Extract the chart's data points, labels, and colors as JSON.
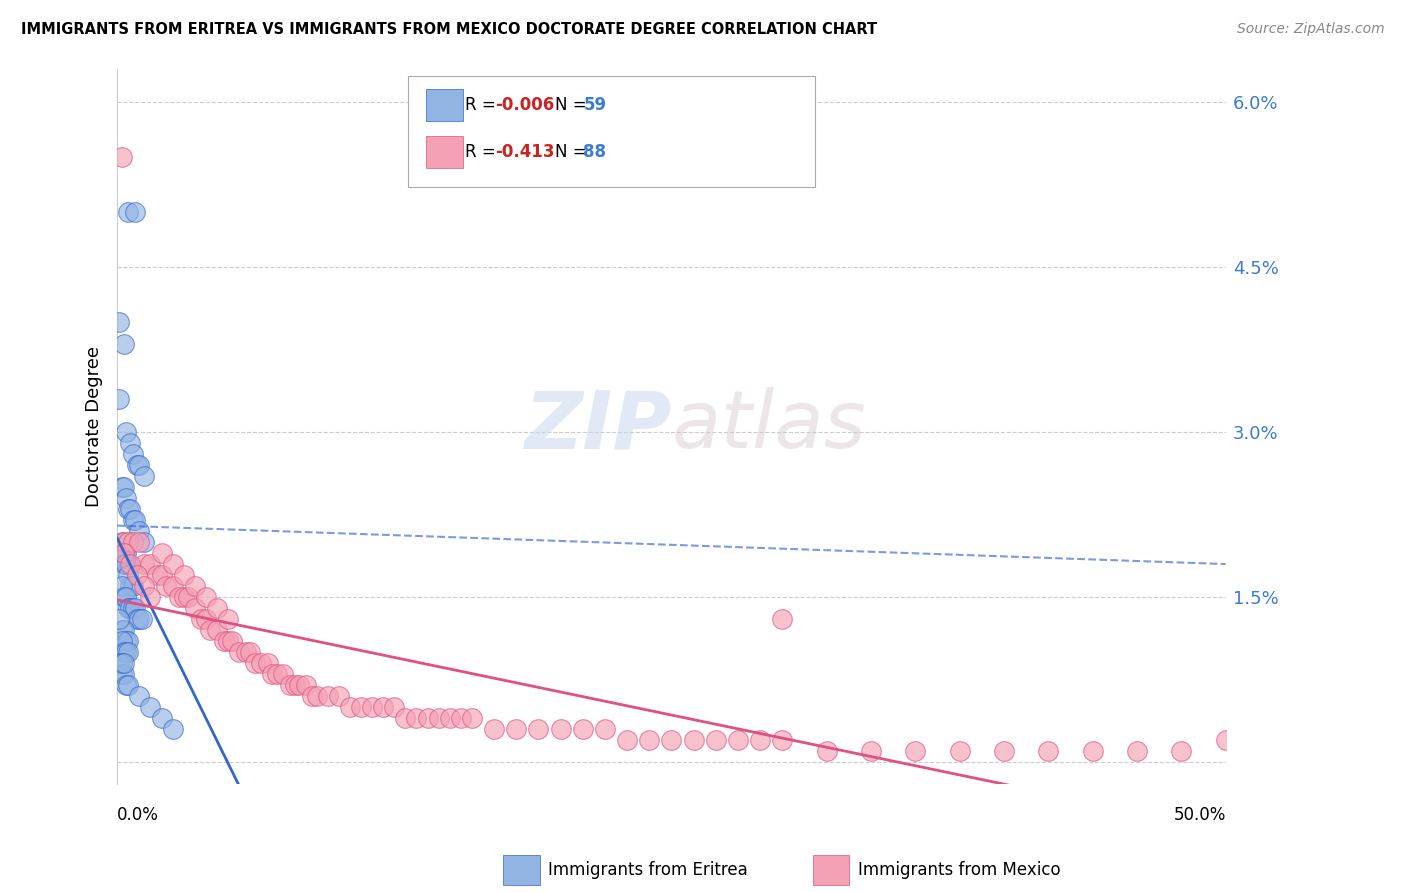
{
  "title": "IMMIGRANTS FROM ERITREA VS IMMIGRANTS FROM MEXICO DOCTORATE DEGREE CORRELATION CHART",
  "source": "Source: ZipAtlas.com",
  "ylabel": "Doctorate Degree",
  "xmin": 0.0,
  "xmax": 0.5,
  "ymin": -0.002,
  "ymax": 0.063,
  "legend_eritrea_R": "-0.006",
  "legend_eritrea_N": "59",
  "legend_mexico_R": "-0.413",
  "legend_mexico_N": "88",
  "eritrea_color": "#92b4e3",
  "mexico_color": "#f4a0b5",
  "eritrea_line_color": "#3366cc",
  "mexico_line_color": "#e05080",
  "background_color": "#ffffff",
  "watermark_zip": "ZIP",
  "watermark_atlas": "atlas",
  "eritrea_scatter_x": [
    0.005,
    0.008,
    0.003,
    0.004,
    0.006,
    0.007,
    0.009,
    0.01,
    0.012,
    0.002,
    0.003,
    0.004,
    0.005,
    0.006,
    0.007,
    0.008,
    0.01,
    0.012,
    0.001,
    0.002,
    0.003,
    0.004,
    0.005,
    0.003,
    0.004,
    0.005,
    0.006,
    0.007,
    0.002,
    0.003,
    0.004,
    0.005,
    0.006,
    0.007,
    0.008,
    0.009,
    0.01,
    0.011,
    0.001,
    0.002,
    0.003,
    0.004,
    0.005,
    0.002,
    0.003,
    0.004,
    0.005,
    0.001,
    0.002,
    0.003,
    0.004,
    0.005,
    0.01,
    0.015,
    0.02,
    0.025,
    0.001,
    0.002,
    0.003
  ],
  "eritrea_scatter_y": [
    0.05,
    0.05,
    0.038,
    0.03,
    0.029,
    0.028,
    0.027,
    0.027,
    0.026,
    0.025,
    0.025,
    0.024,
    0.023,
    0.023,
    0.022,
    0.022,
    0.021,
    0.02,
    0.04,
    0.02,
    0.019,
    0.019,
    0.018,
    0.018,
    0.018,
    0.017,
    0.016,
    0.016,
    0.016,
    0.015,
    0.015,
    0.014,
    0.014,
    0.014,
    0.014,
    0.013,
    0.013,
    0.013,
    0.033,
    0.012,
    0.012,
    0.011,
    0.011,
    0.011,
    0.01,
    0.01,
    0.01,
    0.009,
    0.008,
    0.008,
    0.007,
    0.007,
    0.006,
    0.005,
    0.004,
    0.003,
    0.013,
    0.009,
    0.009
  ],
  "mexico_scatter_x": [
    0.002,
    0.003,
    0.005,
    0.007,
    0.01,
    0.012,
    0.015,
    0.018,
    0.02,
    0.022,
    0.025,
    0.028,
    0.03,
    0.032,
    0.035,
    0.038,
    0.04,
    0.042,
    0.045,
    0.048,
    0.05,
    0.052,
    0.055,
    0.058,
    0.06,
    0.062,
    0.065,
    0.068,
    0.07,
    0.072,
    0.075,
    0.078,
    0.08,
    0.082,
    0.085,
    0.088,
    0.09,
    0.095,
    0.1,
    0.105,
    0.11,
    0.115,
    0.12,
    0.125,
    0.13,
    0.135,
    0.14,
    0.145,
    0.15,
    0.155,
    0.16,
    0.17,
    0.18,
    0.19,
    0.2,
    0.21,
    0.22,
    0.23,
    0.24,
    0.25,
    0.26,
    0.27,
    0.28,
    0.29,
    0.3,
    0.32,
    0.34,
    0.36,
    0.38,
    0.4,
    0.42,
    0.44,
    0.46,
    0.48,
    0.5,
    0.003,
    0.006,
    0.009,
    0.012,
    0.015,
    0.02,
    0.025,
    0.03,
    0.035,
    0.04,
    0.045,
    0.05,
    0.3
  ],
  "mexico_scatter_y": [
    0.055,
    0.02,
    0.02,
    0.02,
    0.02,
    0.018,
    0.018,
    0.017,
    0.017,
    0.016,
    0.016,
    0.015,
    0.015,
    0.015,
    0.014,
    0.013,
    0.013,
    0.012,
    0.012,
    0.011,
    0.011,
    0.011,
    0.01,
    0.01,
    0.01,
    0.009,
    0.009,
    0.009,
    0.008,
    0.008,
    0.008,
    0.007,
    0.007,
    0.007,
    0.007,
    0.006,
    0.006,
    0.006,
    0.006,
    0.005,
    0.005,
    0.005,
    0.005,
    0.005,
    0.004,
    0.004,
    0.004,
    0.004,
    0.004,
    0.004,
    0.004,
    0.003,
    0.003,
    0.003,
    0.003,
    0.003,
    0.003,
    0.002,
    0.002,
    0.002,
    0.002,
    0.002,
    0.002,
    0.002,
    0.002,
    0.001,
    0.001,
    0.001,
    0.001,
    0.001,
    0.001,
    0.001,
    0.001,
    0.001,
    0.002,
    0.019,
    0.018,
    0.017,
    0.016,
    0.015,
    0.019,
    0.018,
    0.017,
    0.016,
    0.015,
    0.014,
    0.013,
    0.013
  ]
}
